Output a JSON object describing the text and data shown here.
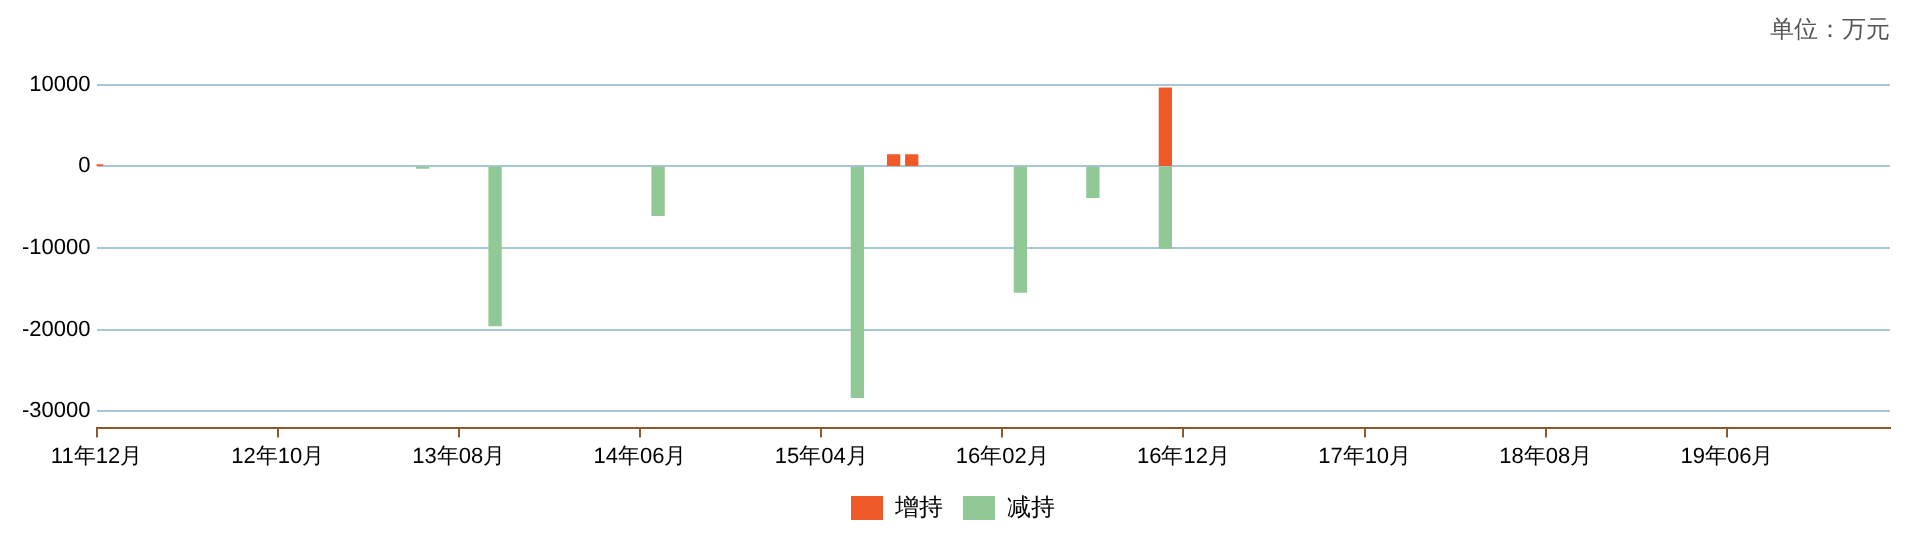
{
  "chart_data": {
    "type": "bar",
    "annotations": [
      "单位：万元"
    ],
    "series": [
      {
        "name": "增持",
        "color": "#f05a28",
        "x": [
          "2011-12",
          "2015-08",
          "2015-09",
          "2016-11"
        ],
        "values": [
          200,
          1400,
          1400,
          9600
        ]
      },
      {
        "name": "减持",
        "color": "#90c896",
        "x": [
          "2013-06",
          "2013-10",
          "2014-07",
          "2015-06",
          "2016-03",
          "2016-07",
          "2016-11"
        ],
        "values": [
          -200,
          -19500,
          -6000,
          -28300,
          -15400,
          -3800,
          -10000
        ]
      }
    ],
    "xlim": [
      "2011-12",
      "2020-03"
    ],
    "xticks": [
      {
        "value": "2011-12",
        "label": "11年12月"
      },
      {
        "value": "2012-10",
        "label": "12年10月"
      },
      {
        "value": "2013-08",
        "label": "13年08月"
      },
      {
        "value": "2014-06",
        "label": "14年06月"
      },
      {
        "value": "2015-04",
        "label": "15年04月"
      },
      {
        "value": "2016-02",
        "label": "16年02月"
      },
      {
        "value": "2016-12",
        "label": "16年12月"
      },
      {
        "value": "2017-10",
        "label": "17年10月"
      },
      {
        "value": "2018-08",
        "label": "18年08月"
      },
      {
        "value": "2019-06",
        "label": "19年06月"
      }
    ],
    "ylim": [
      -32000,
      10000
    ],
    "yticks": [
      -30000,
      -20000,
      -10000,
      0,
      10000
    ],
    "grid": "y",
    "legend": "bottom"
  }
}
